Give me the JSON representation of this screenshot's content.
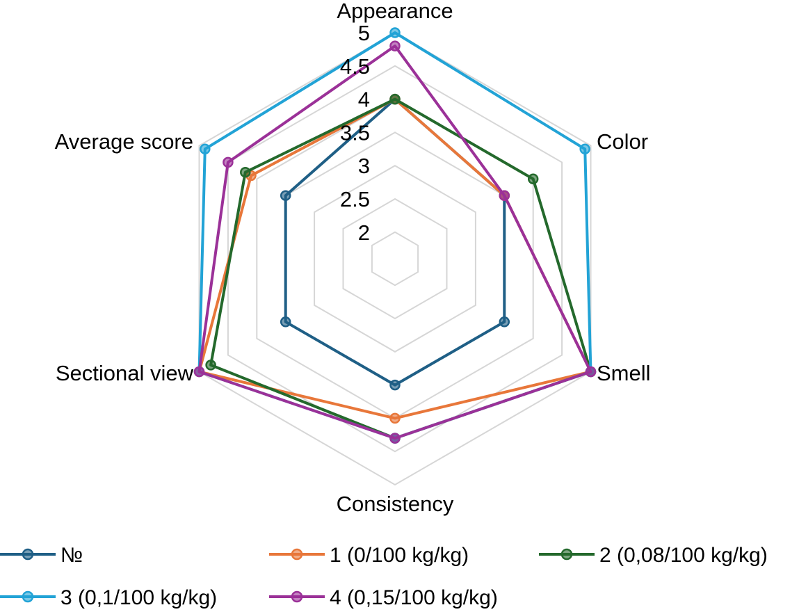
{
  "chart_data": {
    "type": "radar",
    "axes": [
      "Appearance",
      "Color",
      "Smell",
      "Consistency",
      "Sectional view",
      "Average score"
    ],
    "rlim": [
      1.6,
      5
    ],
    "ticks": [
      "2",
      "2.5",
      "3",
      "3.5",
      "4",
      "4.5",
      "5"
    ],
    "grid": true,
    "legend_position": "bottom",
    "series": [
      {
        "name": "№",
        "color": "#1f5f86",
        "values": [
          4,
          3.5,
          3.5,
          3.5,
          3.5,
          3.5
        ]
      },
      {
        "name": "1 (0/100 kg/kg)",
        "color": "#e8773a",
        "values": [
          4,
          3.5,
          5,
          4,
          5,
          4.1
        ]
      },
      {
        "name": "2 (0,08/100 kg/kg)",
        "color": "#24692c",
        "values": [
          4,
          4,
          5,
          4.3,
          4.8,
          4.2
        ]
      },
      {
        "name": "3 (0,1/100 kg/kg)",
        "color": "#22a3d6",
        "values": [
          5,
          4.9,
          5,
          4.3,
          5,
          4.9
        ]
      },
      {
        "name": "4 (0,15/100 kg/kg)",
        "color": "#9b3198",
        "values": [
          4.8,
          3.5,
          5,
          4.3,
          5,
          4.5
        ]
      }
    ]
  }
}
